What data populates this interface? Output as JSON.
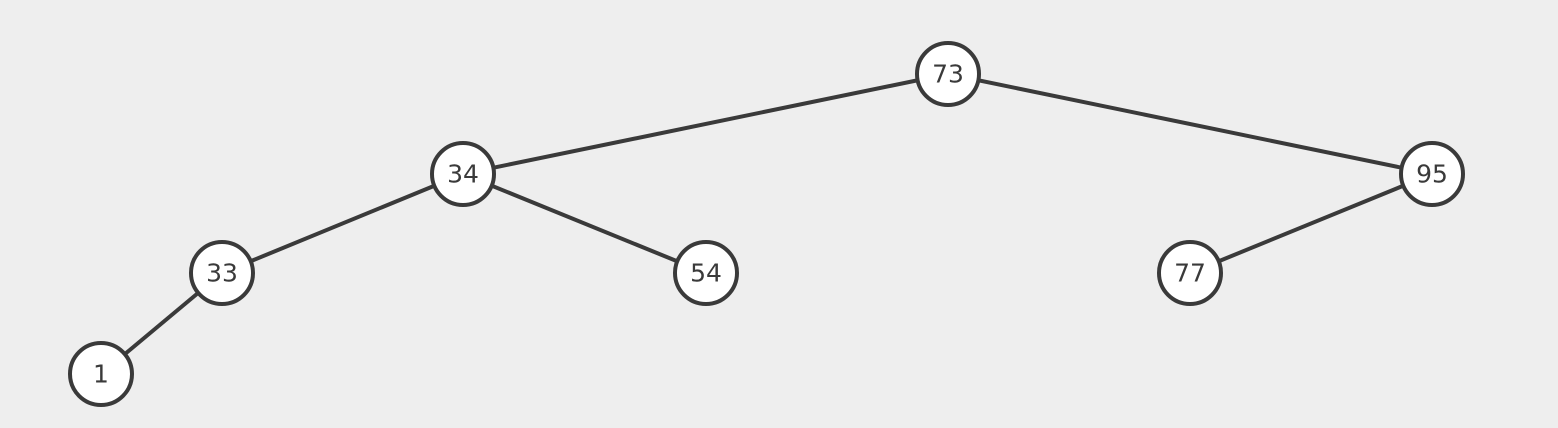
{
  "tree": {
    "nodes": [
      {
        "id": "n73",
        "label": "73"
      },
      {
        "id": "n34",
        "label": "34"
      },
      {
        "id": "n95",
        "label": "95"
      },
      {
        "id": "n33",
        "label": "33"
      },
      {
        "id": "n54",
        "label": "54"
      },
      {
        "id": "n77",
        "label": "77"
      },
      {
        "id": "n1",
        "label": "1"
      }
    ],
    "edges": [
      {
        "from": "n73",
        "to": "n34"
      },
      {
        "from": "n73",
        "to": "n95"
      },
      {
        "from": "n34",
        "to": "n33"
      },
      {
        "from": "n34",
        "to": "n54"
      },
      {
        "from": "n95",
        "to": "n77"
      },
      {
        "from": "n33",
        "to": "n1"
      }
    ]
  },
  "colors": {
    "background": "#eeeeee",
    "stroke": "#3a3a3a",
    "node_fill": "#ffffff"
  }
}
